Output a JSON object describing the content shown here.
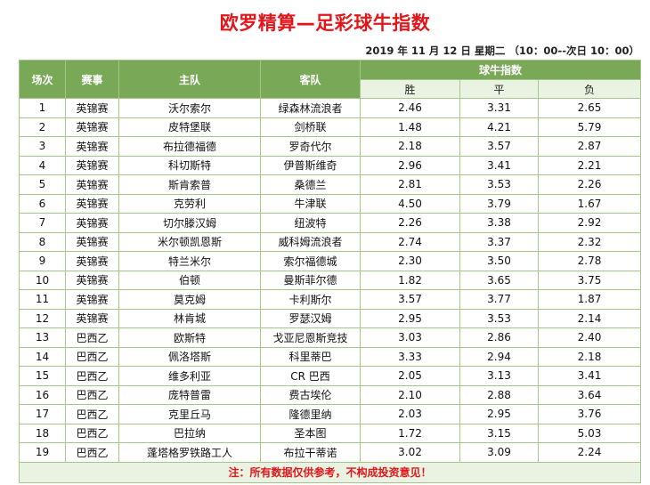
{
  "title": "欧罗精算—足彩球牛指数",
  "date_line": "2019 年 11 月 12 日  星期二 （10：00--次日 10：00）",
  "headers": {
    "no": "场次",
    "league": "赛事",
    "home": "主队",
    "away": "客队",
    "index": "球牛指数",
    "win": "胜",
    "draw": "平",
    "lose": "负"
  },
  "rows": [
    {
      "no": "1",
      "league": "英锦赛",
      "home": "沃尔索尔",
      "away": "绿森林流浪者",
      "win": "2.46",
      "draw": "3.31",
      "lose": "2.65"
    },
    {
      "no": "2",
      "league": "英锦赛",
      "home": "皮特堡联",
      "away": "剑桥联",
      "win": "1.48",
      "draw": "4.21",
      "lose": "5.79"
    },
    {
      "no": "3",
      "league": "英锦赛",
      "home": "布拉德福德",
      "away": "罗奇代尔",
      "win": "2.18",
      "draw": "3.57",
      "lose": "2.87"
    },
    {
      "no": "4",
      "league": "英锦赛",
      "home": "科切斯特",
      "away": "伊普斯维奇",
      "win": "2.96",
      "draw": "3.41",
      "lose": "2.21"
    },
    {
      "no": "5",
      "league": "英锦赛",
      "home": "斯肯索普",
      "away": "桑德兰",
      "win": "2.81",
      "draw": "3.53",
      "lose": "2.26"
    },
    {
      "no": "6",
      "league": "英锦赛",
      "home": "克劳利",
      "away": "牛津联",
      "win": "4.50",
      "draw": "3.79",
      "lose": "1.67"
    },
    {
      "no": "7",
      "league": "英锦赛",
      "home": "切尔滕汉姆",
      "away": "纽波特",
      "win": "2.26",
      "draw": "3.38",
      "lose": "2.92"
    },
    {
      "no": "8",
      "league": "英锦赛",
      "home": "米尔顿凯恩斯",
      "away": "威科姆流浪者",
      "win": "2.74",
      "draw": "3.37",
      "lose": "2.32"
    },
    {
      "no": "9",
      "league": "英锦赛",
      "home": "特兰米尔",
      "away": "索尔福德城",
      "win": "2.30",
      "draw": "3.50",
      "lose": "2.78"
    },
    {
      "no": "10",
      "league": "英锦赛",
      "home": "伯顿",
      "away": "曼斯菲尔德",
      "win": "1.82",
      "draw": "3.65",
      "lose": "3.75"
    },
    {
      "no": "11",
      "league": "英锦赛",
      "home": "莫克姆",
      "away": "卡利斯尔",
      "win": "3.57",
      "draw": "3.77",
      "lose": "1.87"
    },
    {
      "no": "12",
      "league": "英锦赛",
      "home": "林肯城",
      "away": "罗瑟汉姆",
      "win": "2.95",
      "draw": "3.53",
      "lose": "2.14"
    },
    {
      "no": "13",
      "league": "巴西乙",
      "home": "欧斯特",
      "away": "戈亚尼恩斯竞技",
      "win": "3.03",
      "draw": "2.86",
      "lose": "2.40"
    },
    {
      "no": "14",
      "league": "巴西乙",
      "home": "佩洛塔斯",
      "away": "科里蒂巴",
      "win": "3.33",
      "draw": "2.94",
      "lose": "2.18"
    },
    {
      "no": "15",
      "league": "巴西乙",
      "home": "维多利亚",
      "away": "CR 巴西",
      "win": "2.05",
      "draw": "3.13",
      "lose": "3.41"
    },
    {
      "no": "16",
      "league": "巴西乙",
      "home": "庞特普雷",
      "away": "费古埃伦",
      "win": "2.10",
      "draw": "2.88",
      "lose": "3.64"
    },
    {
      "no": "17",
      "league": "巴西乙",
      "home": "克里丘马",
      "away": "隆德里纳",
      "win": "2.03",
      "draw": "2.95",
      "lose": "3.76"
    },
    {
      "no": "18",
      "league": "巴西乙",
      "home": "巴拉纳",
      "away": "圣本图",
      "win": "1.72",
      "draw": "3.15",
      "lose": "5.03"
    },
    {
      "no": "19",
      "league": "巴西乙",
      "home": "蓬塔格罗铁路工人",
      "away": "布拉干蒂诺",
      "win": "3.02",
      "draw": "3.09",
      "lose": "2.24"
    }
  ],
  "note": "注：所有数据仅供参考，不构成投资意见！",
  "colors": {
    "title_red": "#e0161b",
    "header_green": "#79a857",
    "subheader_bg": "#eaf2e1",
    "border": "#a6c48e"
  }
}
